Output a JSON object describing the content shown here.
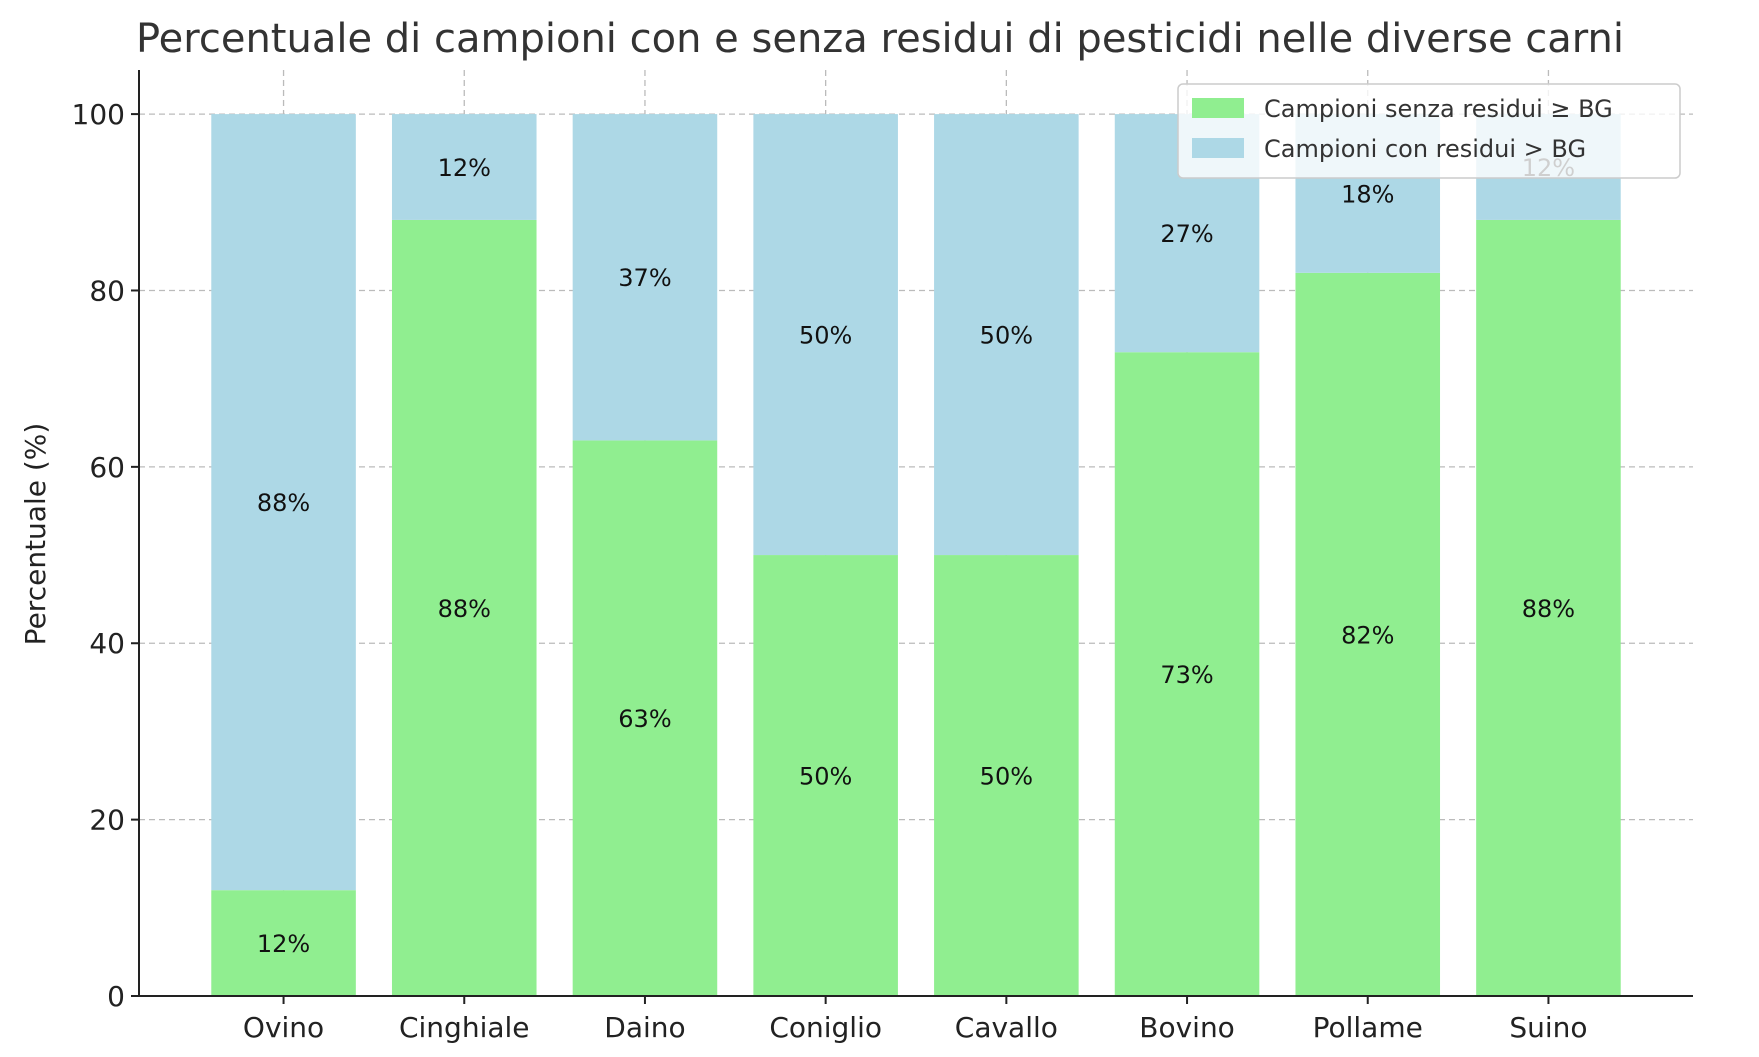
{
  "chart_data": {
    "type": "bar",
    "stacked": true,
    "title": "Percentuale di campioni con e senza residui di pesticidi nelle diverse carni",
    "xlabel": "",
    "ylabel": "Percentuale (%)",
    "ylim": [
      0,
      105
    ],
    "yticks": [
      0,
      20,
      40,
      60,
      80,
      100
    ],
    "grid": true,
    "legend_position": "top-right",
    "categories": [
      "Ovino",
      "Cinghiale",
      "Daino",
      "Coniglio",
      "Cavallo",
      "Bovino",
      "Pollame",
      "Suino"
    ],
    "series": [
      {
        "name": "Campioni senza residui ≥ BG",
        "color": "#90ee90",
        "values": [
          12,
          88,
          63,
          50,
          50,
          73,
          82,
          88
        ],
        "labels": [
          "12%",
          "88%",
          "63%",
          "50%",
          "50%",
          "73%",
          "82%",
          "88%"
        ]
      },
      {
        "name": "Campioni con residui > BG",
        "color": "#add8e6",
        "values": [
          88,
          12,
          37,
          50,
          50,
          27,
          18,
          12
        ],
        "labels": [
          "88%",
          "12%",
          "37%",
          "50%",
          "50%",
          "27%",
          "18%",
          "12%"
        ]
      }
    ]
  }
}
